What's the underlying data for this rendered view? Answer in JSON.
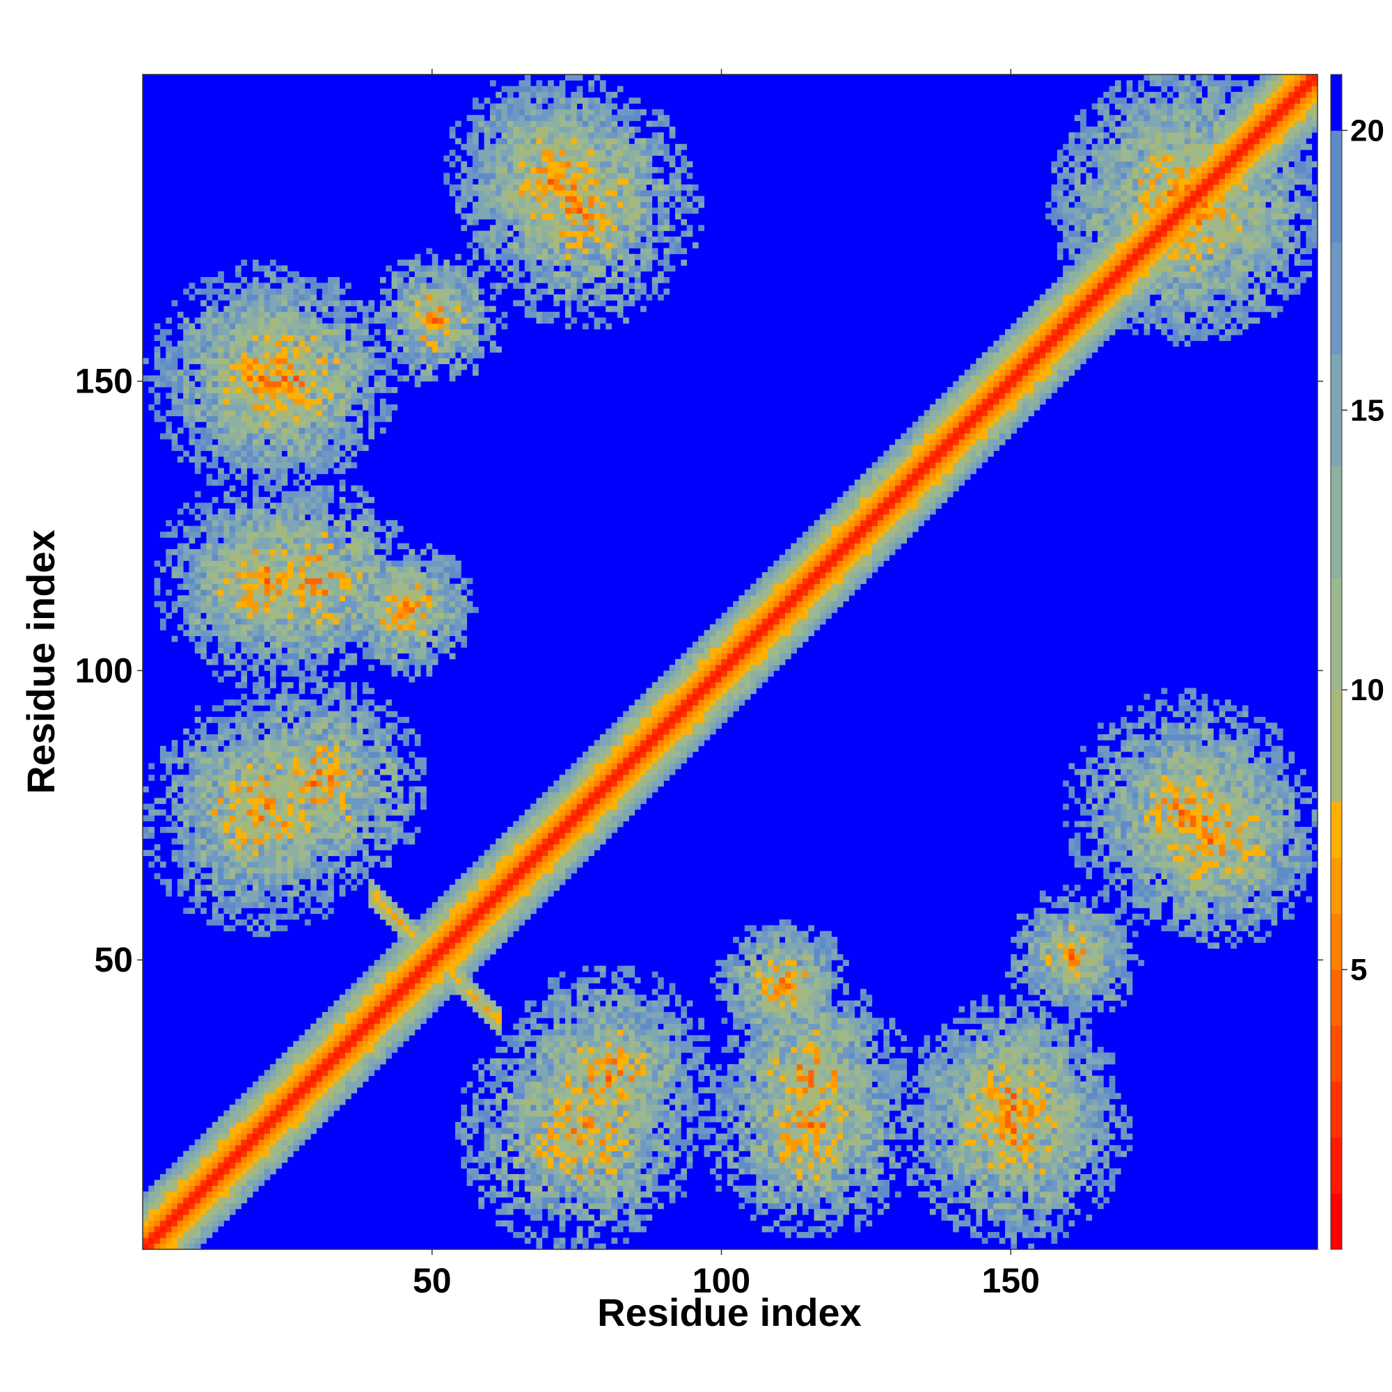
{
  "chart_data": {
    "type": "heatmap",
    "title": "",
    "xlabel": "Residue index",
    "ylabel": "Residue index",
    "xlim": [
      0,
      203
    ],
    "ylim": [
      0,
      203
    ],
    "x_ticks": [
      50,
      100,
      150
    ],
    "y_ticks": [
      50,
      100,
      150
    ],
    "n_residues": 203,
    "value_range": [
      0,
      21
    ],
    "colorbar": {
      "ticks": [
        5,
        10,
        15,
        20
      ],
      "range": [
        0,
        21
      ],
      "levels": [
        {
          "from": 0,
          "to": 1,
          "color": "#ff0000"
        },
        {
          "from": 1,
          "to": 2,
          "color": "#ff1a00"
        },
        {
          "from": 2,
          "to": 3,
          "color": "#ff3300"
        },
        {
          "from": 3,
          "to": 4,
          "color": "#ff4d00"
        },
        {
          "from": 4,
          "to": 5,
          "color": "#ff6600"
        },
        {
          "from": 5,
          "to": 6,
          "color": "#ff8000"
        },
        {
          "from": 6,
          "to": 7,
          "color": "#ff9900"
        },
        {
          "from": 7,
          "to": 8,
          "color": "#ffb000"
        },
        {
          "from": 8,
          "to": 10,
          "color": "#a8b878"
        },
        {
          "from": 10,
          "to": 12,
          "color": "#9cb890"
        },
        {
          "from": 12,
          "to": 14,
          "color": "#8eb0a0"
        },
        {
          "from": 14,
          "to": 16,
          "color": "#7ea6b4"
        },
        {
          "from": 16,
          "to": 18,
          "color": "#6e98c4"
        },
        {
          "from": 18,
          "to": 20,
          "color": "#5f8cc8"
        },
        {
          "from": 20,
          "to": 21,
          "color": "#0000ff"
        }
      ]
    },
    "contact_regions": [
      {
        "x": [
          40,
          60
        ],
        "y": [
          0,
          203
        ],
        "note": "diagonal band"
      },
      {
        "cx": 20,
        "cy": 150,
        "r": 15
      },
      {
        "cx": 20,
        "cy": 115,
        "r": 14
      },
      {
        "cx": 20,
        "cy": 75,
        "r": 16
      },
      {
        "cx": 45,
        "cy": 110,
        "r": 8
      },
      {
        "cx": 70,
        "cy": 185,
        "r": 14
      },
      {
        "cx": 80,
        "cy": 30,
        "r": 14
      },
      {
        "cx": 110,
        "cy": 45,
        "r": 9
      },
      {
        "cx": 115,
        "cy": 30,
        "r": 13
      },
      {
        "cx": 150,
        "cy": 25,
        "r": 14
      },
      {
        "cx": 180,
        "cy": 75,
        "r": 16
      },
      {
        "cx": 180,
        "cy": 180,
        "r": 18
      },
      {
        "cx": 160,
        "cy": 50,
        "r": 9
      }
    ]
  }
}
